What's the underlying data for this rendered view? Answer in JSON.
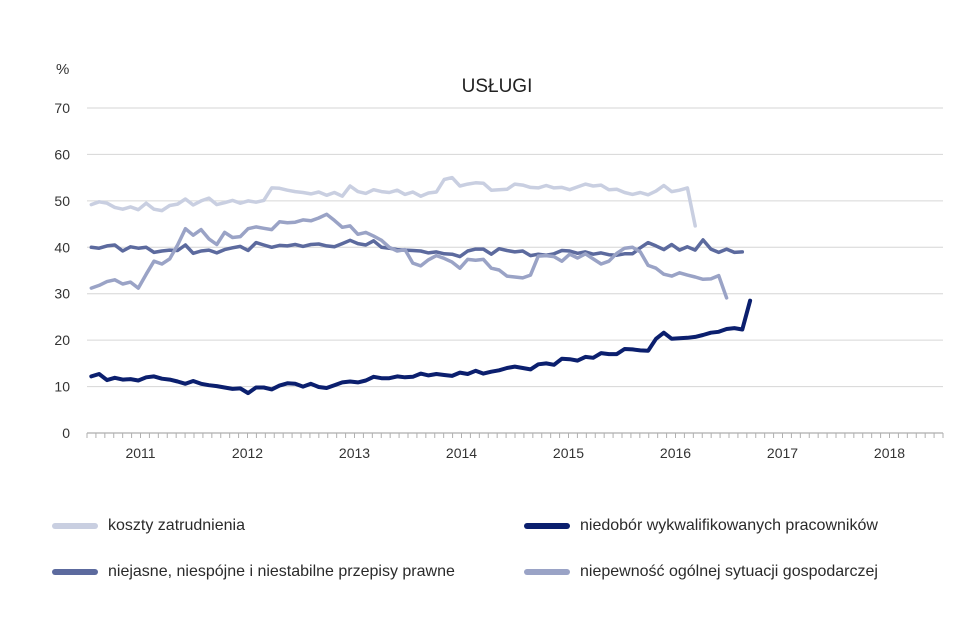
{
  "chart_data": {
    "type": "line",
    "title": "USŁUGI",
    "ylabel": "%",
    "xlabel": "",
    "ylim": [
      0,
      70
    ],
    "yticks": [
      0,
      10,
      20,
      30,
      40,
      50,
      60,
      70
    ],
    "xlim": [
      2010.5,
      2018.5
    ],
    "xticks": [
      {
        "value": 2011,
        "label": "2011"
      },
      {
        "value": 2012,
        "label": "2012"
      },
      {
        "value": 2013,
        "label": "2013"
      },
      {
        "value": 2014,
        "label": "2014"
      },
      {
        "value": 2015,
        "label": "2015"
      },
      {
        "value": 2016,
        "label": "2016"
      },
      {
        "value": 2017,
        "label": "2017"
      },
      {
        "value": 2018,
        "label": "2018"
      }
    ],
    "grid": true,
    "x_start": 2010.54,
    "x_step": 0.0733,
    "series": [
      {
        "name": "koszty zatrudnienia",
        "color": "#c9cfe1",
        "values": [
          49.2,
          49.8,
          49.5,
          48.6,
          48.2,
          48.7,
          48.1,
          49.5,
          48.2,
          47.9,
          49.0,
          49.3,
          50.4,
          49.1,
          50.0,
          50.6,
          49.2,
          49.6,
          50.1,
          49.5,
          50.0,
          49.7,
          50.1,
          52.8,
          52.7,
          52.3,
          52.0,
          51.8,
          51.5,
          51.9,
          51.2,
          51.8,
          51.0,
          53.2,
          52.0,
          51.6,
          52.4,
          52.0,
          51.8,
          52.3,
          51.4,
          51.9,
          51.0,
          51.7,
          51.9,
          54.6,
          55.0,
          53.2,
          53.6,
          53.9,
          53.8,
          52.3,
          52.4,
          52.5,
          53.6,
          53.4,
          52.9,
          52.8,
          53.3,
          52.8,
          52.9,
          52.4,
          53.0,
          53.6,
          53.2,
          53.4,
          52.4,
          52.5,
          51.8,
          51.4,
          51.8,
          51.3,
          52.1,
          53.3,
          52.0,
          52.3,
          52.8,
          44.6
        ]
      },
      {
        "name": "niedobór wykwalifikowanych pracowników",
        "color": "#0b1f6e",
        "values": [
          12.2,
          12.7,
          11.4,
          11.9,
          11.5,
          11.6,
          11.3,
          12.0,
          12.2,
          11.7,
          11.5,
          11.1,
          10.6,
          11.2,
          10.6,
          10.3,
          10.1,
          9.8,
          9.5,
          9.6,
          8.6,
          9.8,
          9.8,
          9.4,
          10.2,
          10.7,
          10.6,
          10.0,
          10.6,
          9.9,
          9.7,
          10.3,
          10.9,
          11.1,
          10.9,
          11.3,
          12.1,
          11.8,
          11.8,
          12.2,
          12.0,
          12.1,
          12.8,
          12.4,
          12.7,
          12.5,
          12.3,
          13.0,
          12.7,
          13.4,
          12.8,
          13.2,
          13.5,
          14.0,
          14.3,
          14.0,
          13.7,
          14.8,
          15.0,
          14.7,
          16.0,
          15.9,
          15.6,
          16.4,
          16.2,
          17.2,
          17.0,
          17.0,
          18.1,
          18.0,
          17.8,
          17.7,
          20.3,
          21.6,
          20.3,
          20.4,
          20.5,
          20.7,
          21.1,
          21.6,
          21.8,
          22.4,
          22.6,
          22.3,
          28.5
        ]
      },
      {
        "name": "niejasne, niespójne i niestabilne przepisy prawne",
        "color": "#5c6a9e",
        "values": [
          40.0,
          39.8,
          40.3,
          40.5,
          39.2,
          40.1,
          39.8,
          40.0,
          38.9,
          39.2,
          39.4,
          39.3,
          40.5,
          38.7,
          39.2,
          39.4,
          38.8,
          39.5,
          39.9,
          40.2,
          39.3,
          41.0,
          40.5,
          40.0,
          40.4,
          40.3,
          40.6,
          40.2,
          40.6,
          40.7,
          40.3,
          40.1,
          40.8,
          41.5,
          40.8,
          40.5,
          41.4,
          40.0,
          39.8,
          39.5,
          39.4,
          39.3,
          39.2,
          38.8,
          39.0,
          38.6,
          38.5,
          38.0,
          39.2,
          39.6,
          39.6,
          38.5,
          39.7,
          39.3,
          39.0,
          39.2,
          38.2,
          38.5,
          38.3,
          38.6,
          39.3,
          39.2,
          38.7,
          39.0,
          38.5,
          38.8,
          38.4,
          38.3,
          38.6,
          38.6,
          39.9,
          41.0,
          40.3,
          39.5,
          40.6,
          39.4,
          40.1,
          39.4,
          41.6,
          39.6,
          38.9,
          39.6,
          38.9,
          39.0
        ]
      },
      {
        "name": "niepewność ogólnej sytuacji gospodarczej",
        "color": "#9aa3c6",
        "values": [
          31.2,
          31.8,
          32.6,
          33.0,
          32.1,
          32.5,
          31.2,
          34.2,
          37.0,
          36.4,
          37.5,
          40.5,
          44.0,
          42.6,
          43.8,
          41.8,
          40.6,
          43.2,
          42.1,
          42.3,
          44.0,
          44.4,
          44.1,
          43.8,
          45.5,
          45.3,
          45.4,
          45.9,
          45.7,
          46.3,
          47.1,
          45.8,
          44.3,
          44.6,
          42.8,
          43.2,
          42.4,
          41.5,
          40.0,
          39.2,
          39.5,
          36.6,
          36.0,
          37.3,
          38.2,
          37.6,
          36.8,
          35.5,
          37.4,
          37.2,
          37.4,
          35.5,
          35.1,
          33.8,
          33.6,
          33.4,
          34.0,
          38.1,
          38.2,
          38.0,
          37.0,
          38.5,
          37.7,
          38.6,
          37.5,
          36.4,
          37.0,
          38.7,
          39.8,
          40.0,
          39.0,
          36.1,
          35.5,
          34.2,
          33.8,
          34.5,
          34.0,
          33.6,
          33.1,
          33.2,
          33.9,
          29.1
        ]
      }
    ]
  },
  "legend": [
    {
      "label": "koszty zatrudnienia",
      "color": "#c9cfe1"
    },
    {
      "label": "niedobór wykwalifikowanych pracowników",
      "color": "#0b1f6e"
    },
    {
      "label": "niejasne, niespójne i niestabilne przepisy prawne",
      "color": "#5c6a9e"
    },
    {
      "label": "niepewność ogólnej sytuacji gospodarczej",
      "color": "#9aa3c6"
    }
  ]
}
